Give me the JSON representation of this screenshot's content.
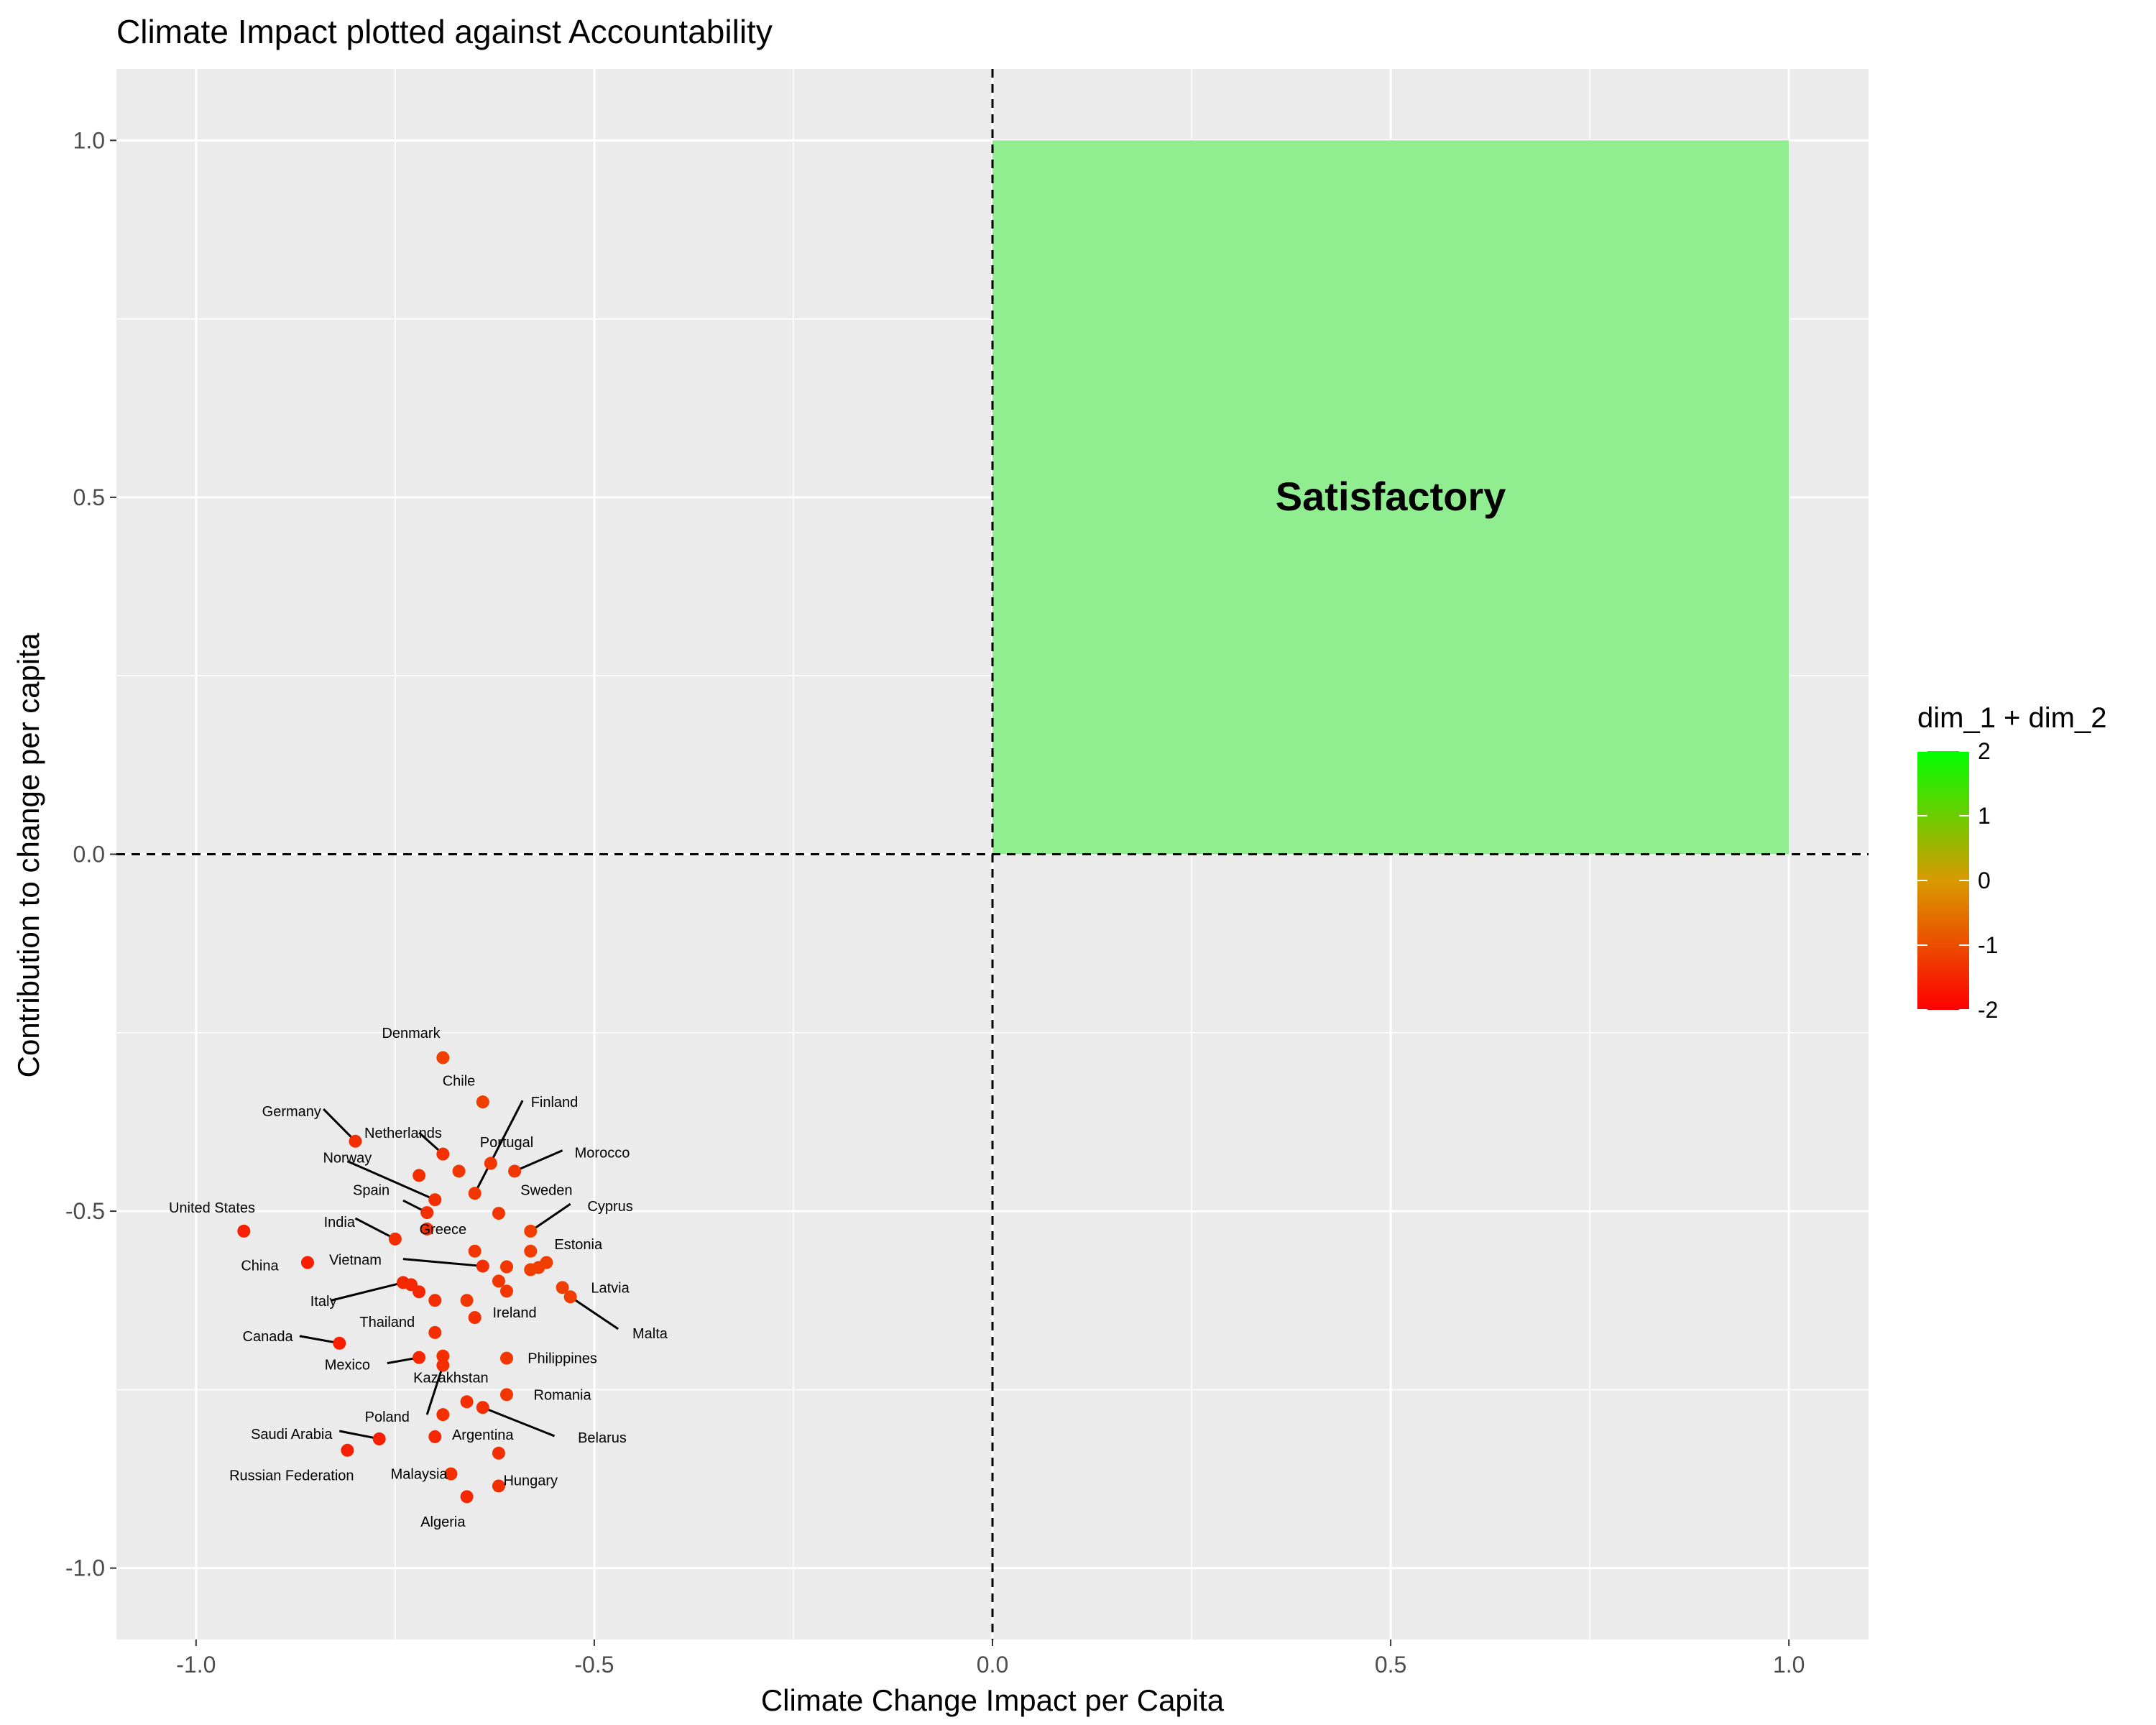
{
  "chart_data": {
    "type": "scatter",
    "title": "Climate Impact plotted against Accountability",
    "xlabel": "Climate Change Impact per Capita",
    "ylabel": "Contribution to change per capita",
    "xlim": [
      -1.1,
      1.1
    ],
    "ylim": [
      -1.1,
      1.1
    ],
    "x_ticks": [
      -1.0,
      -0.5,
      0.0,
      0.5,
      1.0
    ],
    "x_tick_labels": [
      "-1.0",
      "-0.5",
      "0.0",
      "0.5",
      "1.0"
    ],
    "y_ticks": [
      -1.0,
      -0.5,
      0.0,
      0.5,
      1.0
    ],
    "y_tick_labels": [
      "-1.0",
      "-0.5",
      "0.0",
      "0.5",
      "1.0"
    ],
    "grid": true,
    "reference_lines": {
      "x": 0,
      "y": 0,
      "style": "dashed"
    },
    "region": {
      "label": "Satisfactory",
      "x": [
        0,
        1
      ],
      "y": [
        0,
        1
      ],
      "color": "#90EE90"
    },
    "legend": {
      "title": "dim_1 + dim_2",
      "placement": "right",
      "min": -2,
      "max": 2,
      "ticks": [
        "2",
        "1",
        "0",
        "-1",
        "-2"
      ],
      "low_color": "#FF0000",
      "high_color": "#00FF00"
    },
    "points": [
      {
        "x": -0.69,
        "y": -0.285,
        "c": -1.2,
        "label": "Denmark",
        "lx": -0.73,
        "ly": -0.25
      },
      {
        "x": -0.64,
        "y": -0.347,
        "c": -1.2,
        "label": "Chile",
        "lx": -0.67,
        "ly": -0.317
      },
      {
        "x": -0.8,
        "y": -0.402,
        "c": -1.4,
        "label": "Germany",
        "lx": -0.88,
        "ly": -0.36,
        "line": [
          -0.84,
          -0.357
        ]
      },
      {
        "x": -0.69,
        "y": -0.42,
        "c": -1.4,
        "label": "Netherlands",
        "lx": -0.74,
        "ly": -0.39,
        "line": [
          -0.72,
          -0.39
        ]
      },
      {
        "x": -0.65,
        "y": -0.475,
        "c": -1.3,
        "label": "Finland",
        "lx": -0.55,
        "ly": -0.347,
        "line": [
          -0.59,
          -0.345
        ]
      },
      {
        "x": -0.63,
        "y": -0.433,
        "c": -1.3,
        "label": "Portugal",
        "lx": -0.61,
        "ly": -0.403
      },
      {
        "x": -0.6,
        "y": -0.444,
        "c": -1.3,
        "label": "Morocco",
        "lx": -0.49,
        "ly": -0.418,
        "line": [
          -0.54,
          -0.415
        ]
      },
      {
        "x": -0.7,
        "y": -0.484,
        "c": -1.4,
        "label": "Norway",
        "lx": -0.81,
        "ly": -0.425,
        "line": [
          -0.81,
          -0.43
        ]
      },
      {
        "x": -0.72,
        "y": -0.45,
        "c": -1.4
      },
      {
        "x": -0.67,
        "y": -0.444,
        "c": -1.3
      },
      {
        "x": -0.71,
        "y": -0.502,
        "c": -1.4,
        "label": "Spain",
        "lx": -0.78,
        "ly": -0.47,
        "line": [
          -0.74,
          -0.485
        ]
      },
      {
        "x": -0.62,
        "y": -0.503,
        "c": -1.3,
        "label": "Sweden",
        "lx": -0.56,
        "ly": -0.47
      },
      {
        "x": -0.58,
        "y": -0.528,
        "c": -1.2,
        "label": "Cyprus",
        "lx": -0.48,
        "ly": -0.493,
        "line": [
          -0.53,
          -0.49
        ]
      },
      {
        "x": -0.94,
        "y": -0.528,
        "c": -1.6,
        "label": "United States",
        "lx": -0.98,
        "ly": -0.495
      },
      {
        "x": -0.75,
        "y": -0.539,
        "c": -1.4,
        "label": "India",
        "lx": -0.82,
        "ly": -0.515,
        "line": [
          -0.8,
          -0.51
        ]
      },
      {
        "x": -0.71,
        "y": -0.525,
        "c": -1.4,
        "label": "Greece",
        "lx": -0.69,
        "ly": -0.525
      },
      {
        "x": -0.56,
        "y": -0.572,
        "c": -1.2,
        "label": "Estonia",
        "lx": -0.52,
        "ly": -0.546
      },
      {
        "x": -0.86,
        "y": -0.572,
        "c": -1.6,
        "label": "China",
        "lx": -0.92,
        "ly": -0.576
      },
      {
        "x": -0.64,
        "y": -0.577,
        "c": -1.4,
        "label": "Vietnam",
        "lx": -0.8,
        "ly": -0.568,
        "line": [
          -0.74,
          -0.567
        ]
      },
      {
        "x": -0.65,
        "y": -0.556,
        "c": -1.3
      },
      {
        "x": -0.58,
        "y": -0.556,
        "c": -1.2
      },
      {
        "x": -0.61,
        "y": -0.578,
        "c": -1.3
      },
      {
        "x": -0.58,
        "y": -0.582,
        "c": -1.2
      },
      {
        "x": -0.57,
        "y": -0.579,
        "c": -1.2
      },
      {
        "x": -0.54,
        "y": -0.607,
        "c": -1.2,
        "label": "Latvia",
        "lx": -0.48,
        "ly": -0.607
      },
      {
        "x": -0.62,
        "y": -0.598,
        "c": -1.3
      },
      {
        "x": -0.61,
        "y": -0.612,
        "c": -1.3
      },
      {
        "x": -0.53,
        "y": -0.62,
        "c": -1.2,
        "label": "Malta",
        "lx": -0.43,
        "ly": -0.671,
        "line": [
          -0.47,
          -0.665
        ]
      },
      {
        "x": -0.74,
        "y": -0.6,
        "c": -1.5,
        "label": "Italy",
        "lx": -0.84,
        "ly": -0.626,
        "line": [
          -0.83,
          -0.625
        ]
      },
      {
        "x": -0.73,
        "y": -0.603,
        "c": -1.5
      },
      {
        "x": -0.72,
        "y": -0.613,
        "c": -1.5
      },
      {
        "x": -0.7,
        "y": -0.625,
        "c": -1.4
      },
      {
        "x": -0.66,
        "y": -0.625,
        "c": -1.3
      },
      {
        "x": -0.65,
        "y": -0.649,
        "c": -1.4,
        "label": "Ireland",
        "lx": -0.6,
        "ly": -0.642
      },
      {
        "x": -0.7,
        "y": -0.67,
        "c": -1.4,
        "label": "Thailand",
        "lx": -0.76,
        "ly": -0.655
      },
      {
        "x": -0.82,
        "y": -0.685,
        "c": -1.6,
        "label": "Canada",
        "lx": -0.91,
        "ly": -0.675,
        "line": [
          -0.87,
          -0.675
        ]
      },
      {
        "x": -0.72,
        "y": -0.705,
        "c": -1.5,
        "label": "Mexico",
        "lx": -0.81,
        "ly": -0.715,
        "line": [
          -0.76,
          -0.713
        ]
      },
      {
        "x": -0.69,
        "y": -0.703,
        "c": -1.4
      },
      {
        "x": -0.61,
        "y": -0.706,
        "c": -1.3,
        "label": "Philippines",
        "lx": -0.54,
        "ly": -0.706
      },
      {
        "x": -0.69,
        "y": -0.716,
        "c": -1.4,
        "label": "Kazakhstan",
        "lx": -0.68,
        "ly": -0.733,
        "line": [
          -0.71,
          -0.785
        ]
      },
      {
        "x": -0.61,
        "y": -0.757,
        "c": -1.3,
        "label": "Romania",
        "lx": -0.54,
        "ly": -0.757
      },
      {
        "x": -0.66,
        "y": -0.767,
        "c": -1.4
      },
      {
        "x": -0.64,
        "y": -0.775,
        "c": -1.4,
        "label": "Belarus",
        "lx": -0.49,
        "ly": -0.817,
        "line": [
          -0.55,
          -0.815
        ]
      },
      {
        "x": -0.69,
        "y": -0.785,
        "c": -1.4,
        "label": "Poland",
        "lx": -0.76,
        "ly": -0.788
      },
      {
        "x": -0.77,
        "y": -0.819,
        "c": -1.6,
        "label": "Saudi Arabia",
        "lx": -0.88,
        "ly": -0.812,
        "line": [
          -0.82,
          -0.808
        ]
      },
      {
        "x": -0.7,
        "y": -0.816,
        "c": -1.5
      },
      {
        "x": -0.62,
        "y": -0.839,
        "c": -1.4,
        "label": "Argentina",
        "lx": -0.64,
        "ly": -0.813
      },
      {
        "x": -0.81,
        "y": -0.835,
        "c": -1.6,
        "label": "Russian Federation",
        "lx": -0.88,
        "ly": -0.87
      },
      {
        "x": -0.68,
        "y": -0.868,
        "c": -1.4,
        "label": "Malaysia",
        "lx": -0.72,
        "ly": -0.868
      },
      {
        "x": -0.62,
        "y": -0.885,
        "c": -1.4,
        "label": "Hungary",
        "lx": -0.58,
        "ly": -0.877
      },
      {
        "x": -0.66,
        "y": -0.9,
        "c": -1.5,
        "label": "Algeria",
        "lx": -0.69,
        "ly": -0.935
      }
    ]
  }
}
